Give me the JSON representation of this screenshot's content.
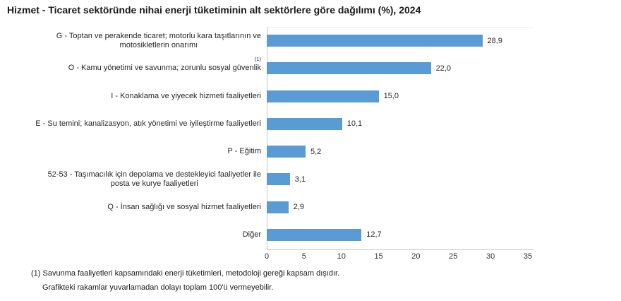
{
  "title": "Hizmet - Ticaret sektöründe nihai enerji tüketiminin alt sektörlere göre dağılımı (%), 2024",
  "chart_data": {
    "type": "bar",
    "orientation": "horizontal",
    "title": "Hizmet - Ticaret sektöründe nihai enerji tüketiminin alt sektörlere göre dağılımı (%), 2024",
    "categories": [
      "G - Toptan ve perakende ticaret; motorlu kara taşıtlarının ve\nmotosikletlerin onarımı",
      "O - Kamu yönetimi ve savunma; zorunlu sosyal güvenlik",
      "I - Konaklama ve yiyecek hizmeti faaliyetleri",
      "E - Su temini; kanalizasyon, atık yönetimi ve iyileştirme faaliyetleri",
      "P - Eğitim",
      "52-53 - Taşımacılık için depolama ve destekleyici faaliyetler ile\nposta ve kurye faaliyetleri",
      "Q - İnsan sağlığı ve sosyal hizmet faaliyetleri",
      "Diğer"
    ],
    "category_superscripts": [
      "",
      "(1)",
      "",
      "",
      "",
      "",
      "",
      ""
    ],
    "values": [
      28.9,
      22.0,
      15.0,
      10.1,
      5.2,
      3.1,
      2.9,
      12.7
    ],
    "value_labels": [
      "28,9",
      "22,0",
      "15,0",
      "10,1",
      "5,2",
      "3,1",
      "2,9",
      "12,7"
    ],
    "x_ticks": [
      0,
      5,
      10,
      15,
      20,
      25,
      30,
      35
    ],
    "xlim": [
      0,
      35
    ],
    "xlabel": "",
    "ylabel": "",
    "grid": false,
    "legend": "none",
    "bar_color": "#5B9BD5"
  },
  "footnotes": [
    "(1) Savunma faaliyetleri kapsamındaki enerji tüketimleri, metodoloji gereği kapsam dışıdır.",
    "Grafikteki rakamlar yuvarlamadan dolayı toplam 100'ü vermeyebilir."
  ]
}
